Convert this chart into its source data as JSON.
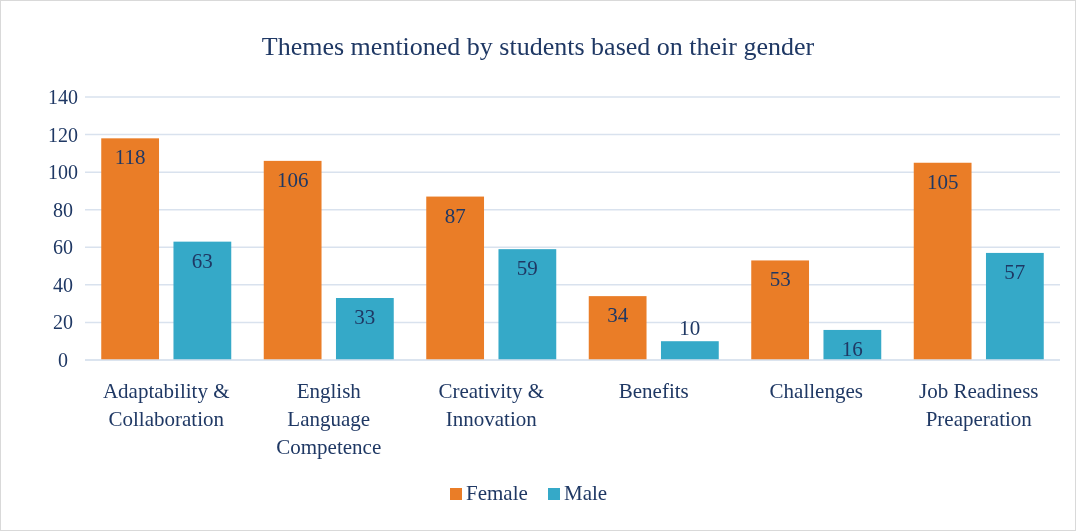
{
  "chart_data": {
    "type": "bar",
    "title": "Themes mentioned by students based on their gender",
    "categories": [
      "Adaptability & Collaboration",
      "English Language Competence",
      "Creativity & Innovation",
      "Benefits",
      "Challenges",
      "Job Readiness Preaperation"
    ],
    "series": [
      {
        "name": "Female",
        "color": "#ea7d27",
        "values": [
          118,
          106,
          87,
          34,
          53,
          105
        ]
      },
      {
        "name": "Male",
        "color": "#35a9c8",
        "values": [
          63,
          33,
          59,
          10,
          16,
          57
        ]
      }
    ],
    "ylim": [
      0,
      140
    ],
    "yticks": [
      0,
      20,
      40,
      60,
      80,
      100,
      120,
      140
    ],
    "grid": "y",
    "legend": "bottom",
    "data_labels": true
  }
}
